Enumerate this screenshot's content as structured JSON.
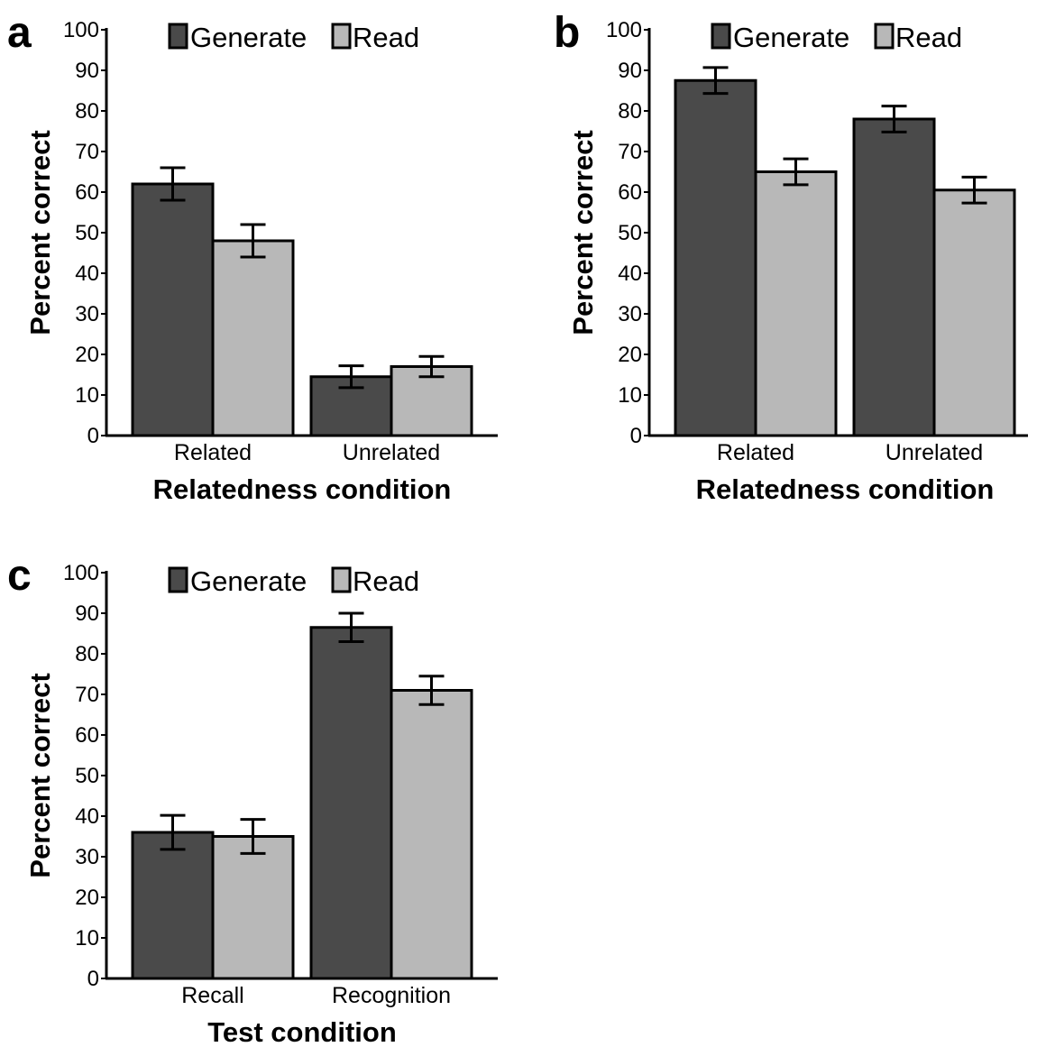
{
  "colors": {
    "generate": "#4a4a4a",
    "read": "#b8b8b8",
    "axis": "#000000",
    "background": "#ffffff"
  },
  "chart_data": [
    {
      "panel": "a",
      "type": "bar",
      "title": "",
      "xlabel": "Relatedness condition",
      "ylabel": "Percent correct",
      "ylim": [
        0,
        100
      ],
      "yticks": [
        0,
        10,
        20,
        30,
        40,
        50,
        60,
        70,
        80,
        90,
        100
      ],
      "grid": false,
      "legend": "top",
      "categories": [
        "Related",
        "Unrelated"
      ],
      "series": [
        {
          "name": "Generate",
          "values": [
            62,
            14.5
          ],
          "errors": [
            4,
            2.7
          ]
        },
        {
          "name": "Read",
          "values": [
            48,
            17
          ],
          "errors": [
            4,
            2.5
          ]
        }
      ]
    },
    {
      "panel": "b",
      "type": "bar",
      "title": "",
      "xlabel": "Relatedness condition",
      "ylabel": "Percent correct",
      "ylim": [
        0,
        100
      ],
      "yticks": [
        0,
        10,
        20,
        30,
        40,
        50,
        60,
        70,
        80,
        90,
        100
      ],
      "grid": false,
      "legend": "top",
      "categories": [
        "Related",
        "Unrelated"
      ],
      "series": [
        {
          "name": "Generate",
          "values": [
            87.5,
            78
          ],
          "errors": [
            3.2,
            3.2
          ]
        },
        {
          "name": "Read",
          "values": [
            65,
            60.5
          ],
          "errors": [
            3.2,
            3.2
          ]
        }
      ]
    },
    {
      "panel": "c",
      "type": "bar",
      "title": "",
      "xlabel": "Test condition",
      "ylabel": "Percent correct",
      "ylim": [
        0,
        100
      ],
      "yticks": [
        0,
        10,
        20,
        30,
        40,
        50,
        60,
        70,
        80,
        90,
        100
      ],
      "grid": false,
      "legend": "top",
      "categories": [
        "Recall",
        "Recognition"
      ],
      "series": [
        {
          "name": "Generate",
          "values": [
            36,
            86.5
          ],
          "errors": [
            4.2,
            3.5
          ]
        },
        {
          "name": "Read",
          "values": [
            35,
            71
          ],
          "errors": [
            4.2,
            3.5
          ]
        }
      ]
    }
  ]
}
